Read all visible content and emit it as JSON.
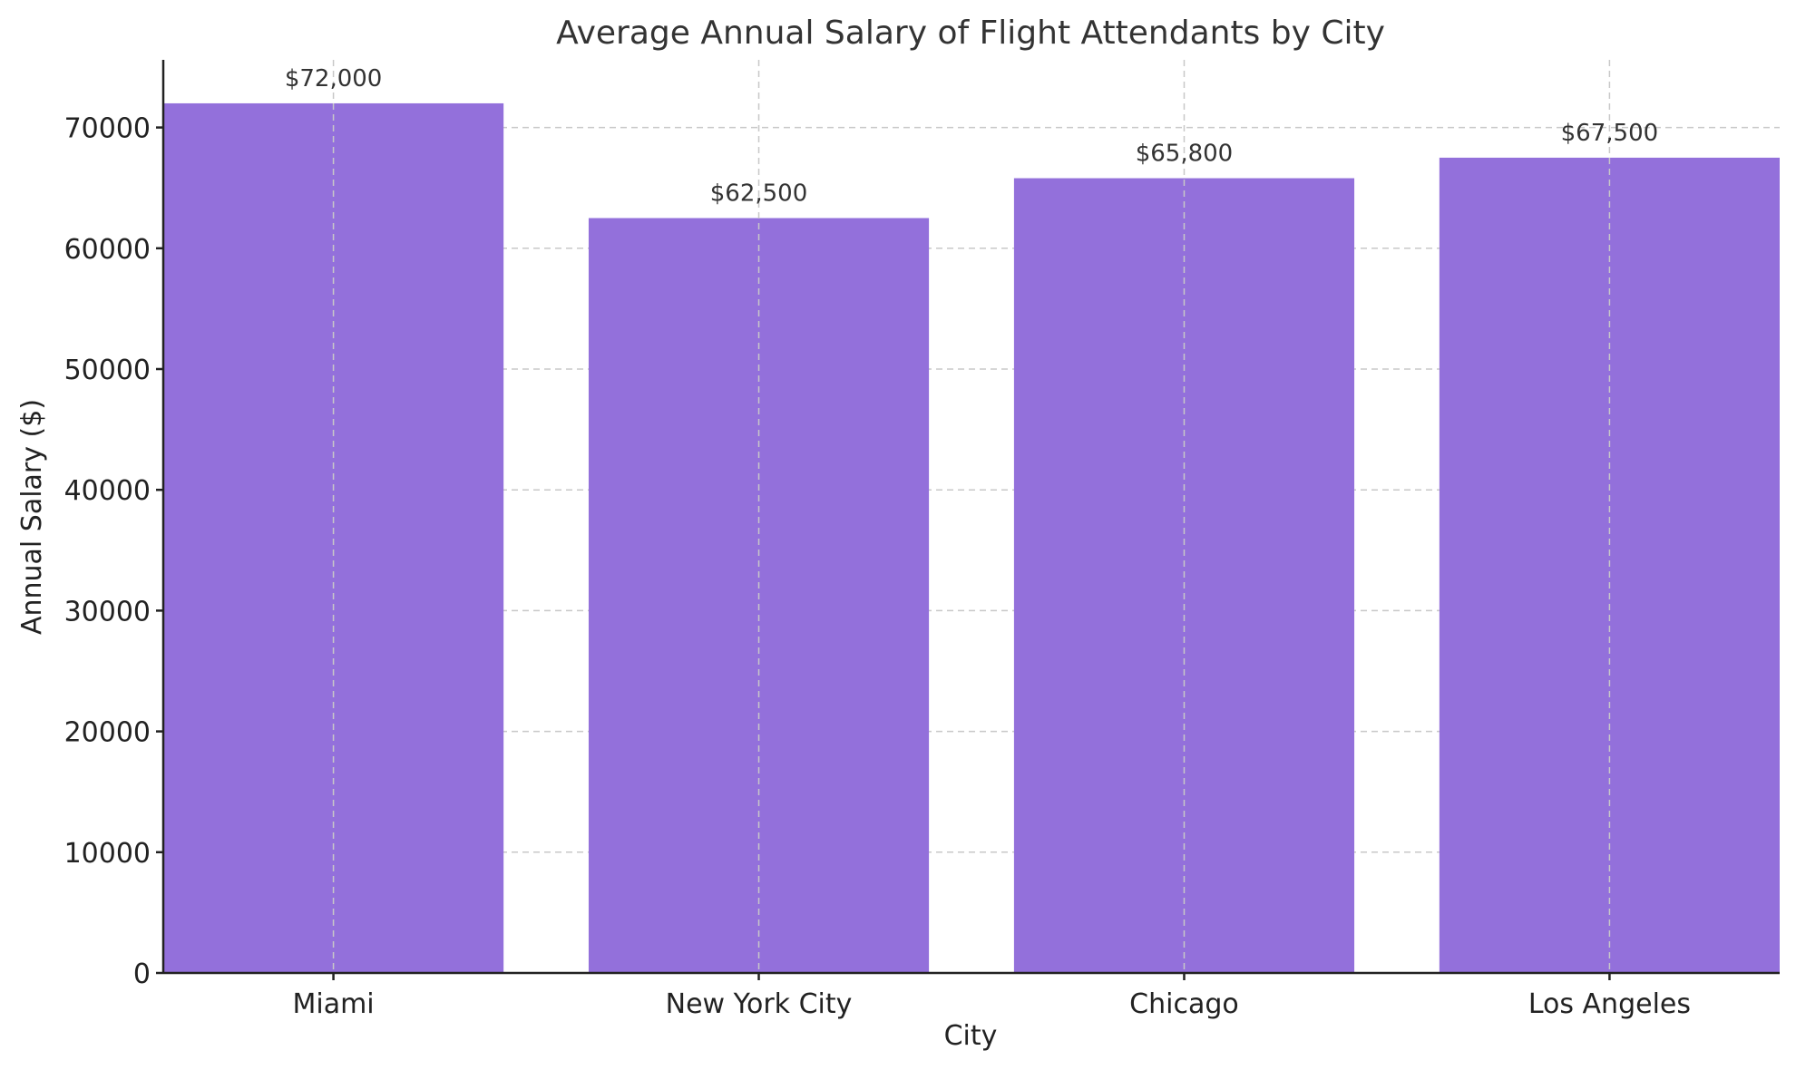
{
  "chart_data": {
    "type": "bar",
    "title": "Average Annual Salary of Flight Attendants by City",
    "xlabel": "City",
    "ylabel": "Annual Salary ($)",
    "categories": [
      "Miami",
      "New York City",
      "Chicago",
      "Los Angeles"
    ],
    "values": [
      72000,
      62500,
      65800,
      67500
    ],
    "data_labels": [
      "$72,000",
      "$62,500",
      "$65,800",
      "$67,500"
    ],
    "ylim": [
      0,
      75600
    ],
    "yticks": [
      0,
      10000,
      20000,
      30000,
      40000,
      50000,
      60000,
      70000
    ],
    "grid": true,
    "bar_color": "#9370db"
  }
}
